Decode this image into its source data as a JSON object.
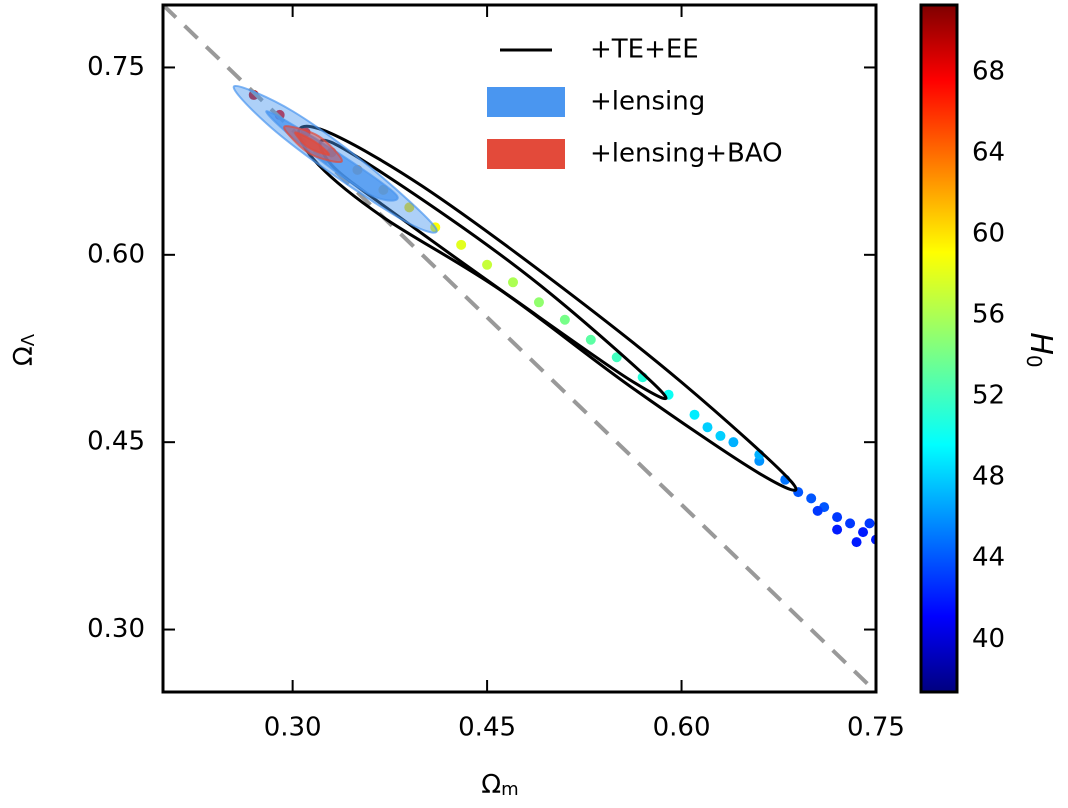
{
  "chart_data": {
    "type": "scatter",
    "xlabel": {
      "symbol": "Ω",
      "sub": "m"
    },
    "ylabel": {
      "symbol": "Ω",
      "sub": "Λ"
    },
    "xlim": [
      0.2,
      0.75
    ],
    "ylim": [
      0.25,
      0.8
    ],
    "xticks": [
      {
        "value": 0.3,
        "label": "0.30"
      },
      {
        "value": 0.45,
        "label": "0.45"
      },
      {
        "value": 0.6,
        "label": "0.60"
      },
      {
        "value": 0.75,
        "label": "0.75"
      }
    ],
    "yticks": [
      {
        "value": 0.3,
        "label": "0.30"
      },
      {
        "value": 0.45,
        "label": "0.45"
      },
      {
        "value": 0.6,
        "label": "0.60"
      },
      {
        "value": 0.75,
        "label": "0.75"
      }
    ],
    "colormap": "jet",
    "colorbar": {
      "label": "H",
      "label_sub": "0",
      "lim": [
        37.4,
        71.3
      ],
      "ticks": [
        40,
        44,
        48,
        52,
        56,
        60,
        64,
        68
      ]
    },
    "reference_line": {
      "x": [
        0.2,
        0.75
      ],
      "y": [
        0.8,
        0.25
      ],
      "color": "#999999"
    },
    "points": {
      "x": [
        0.27,
        0.29,
        0.31,
        0.33,
        0.35,
        0.37,
        0.39,
        0.41,
        0.43,
        0.45,
        0.47,
        0.49,
        0.51,
        0.53,
        0.55,
        0.57,
        0.59,
        0.61,
        0.62,
        0.64,
        0.66,
        0.68,
        0.7,
        0.71,
        0.72,
        0.73,
        0.74,
        0.75,
        0.69,
        0.72,
        0.745,
        0.705,
        0.66,
        0.63,
        0.735
      ],
      "y": [
        0.728,
        0.712,
        0.698,
        0.682,
        0.668,
        0.652,
        0.638,
        0.622,
        0.608,
        0.592,
        0.578,
        0.562,
        0.548,
        0.532,
        0.518,
        0.502,
        0.488,
        0.472,
        0.462,
        0.45,
        0.435,
        0.42,
        0.405,
        0.398,
        0.39,
        0.385,
        0.378,
        0.372,
        0.41,
        0.38,
        0.385,
        0.395,
        0.44,
        0.455,
        0.37
      ],
      "h": [
        69,
        68,
        67,
        65,
        63,
        62,
        60,
        59,
        58,
        57,
        56,
        55,
        54,
        53,
        52,
        51,
        50,
        49,
        48,
        47,
        46,
        45,
        44,
        44,
        43,
        43,
        42,
        42,
        44,
        42,
        43,
        43,
        47,
        48,
        42
      ]
    },
    "series": [
      {
        "name": "+TE+EE",
        "color": "#000000",
        "filled": false,
        "contours": [
          {
            "x": [
              0.305,
              0.33,
              0.4,
              0.5,
              0.6,
              0.685,
              0.66,
              0.56,
              0.46,
              0.37,
              0.32
            ],
            "y": [
              0.7,
              0.697,
              0.655,
              0.58,
              0.498,
              0.418,
              0.425,
              0.495,
              0.572,
              0.63,
              0.672
            ]
          },
          {
            "x": [
              0.33,
              0.42,
              0.5,
              0.585,
              0.56,
              0.47,
              0.38,
              0.33
            ],
            "y": [
              0.69,
              0.63,
              0.568,
              0.49,
              0.5,
              0.565,
              0.632,
              0.672
            ]
          }
        ]
      },
      {
        "name": "+lensing",
        "color": "#4a96f0",
        "filled": true,
        "contours": [
          {
            "x": [
              0.255,
              0.3,
              0.36,
              0.41,
              0.39,
              0.33,
              0.28
            ],
            "y": [
              0.735,
              0.715,
              0.67,
              0.622,
              0.625,
              0.665,
              0.705
            ]
          },
          {
            "x": [
              0.28,
              0.33,
              0.38,
              0.36,
              0.31
            ],
            "y": [
              0.715,
              0.685,
              0.648,
              0.648,
              0.685
            ]
          }
        ]
      },
      {
        "name": "+lensing+BAO",
        "color": "#e34a3a",
        "filled": true,
        "contours": [
          {
            "x": [
              0.295,
              0.32,
              0.338,
              0.315,
              0.298
            ],
            "y": [
              0.703,
              0.695,
              0.675,
              0.68,
              0.695
            ]
          },
          {
            "x": [
              0.302,
              0.318,
              0.328,
              0.312
            ],
            "y": [
              0.698,
              0.69,
              0.68,
              0.686
            ]
          }
        ]
      }
    ]
  }
}
